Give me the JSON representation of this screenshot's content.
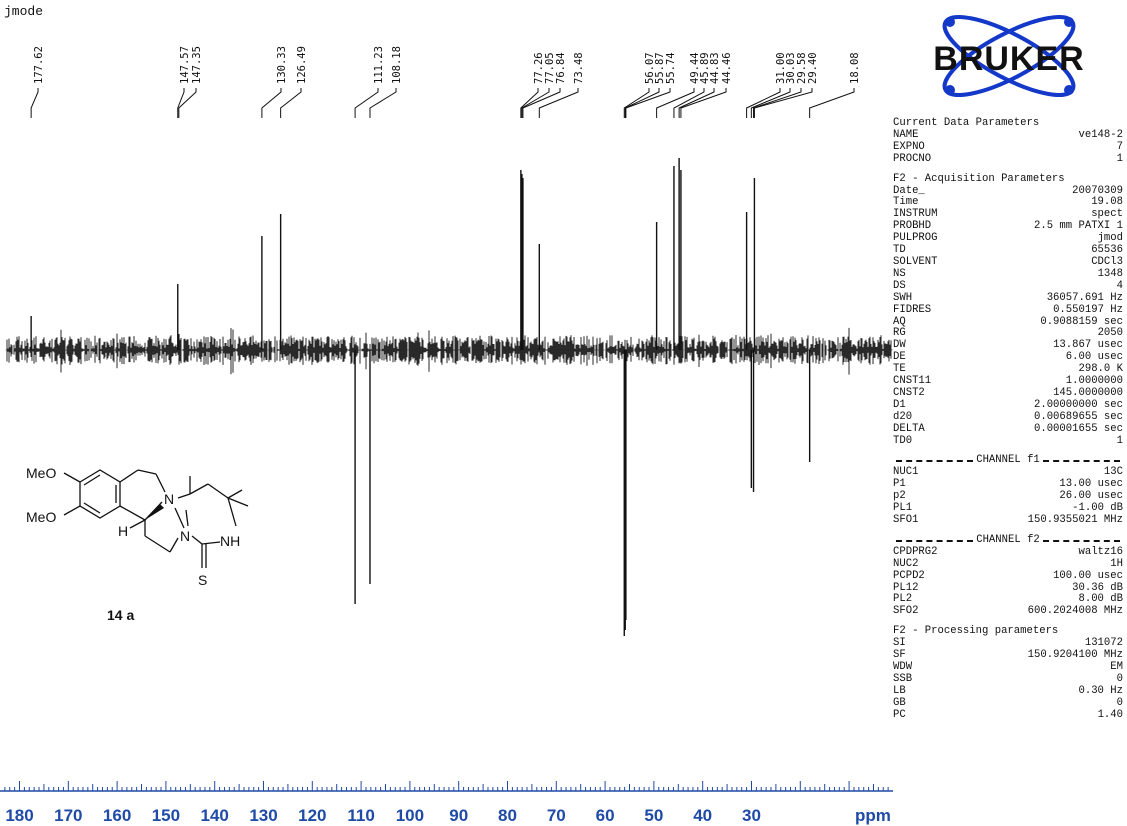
{
  "chart_data": {
    "type": "line",
    "title": "jmode",
    "xlabel": "ppm",
    "xlim": [
      184,
      1
    ],
    "x_ticks": [
      180,
      170,
      160,
      150,
      140,
      130,
      120,
      110,
      100,
      90,
      80,
      70,
      60,
      50,
      40,
      30
    ],
    "peak_labels": [
      "177.62",
      "147.57",
      "147.35",
      "130.33",
      "126.49",
      "111.23",
      "108.18",
      "77.26",
      "77.05",
      "76.84",
      "73.48",
      "56.07",
      "55.87",
      "55.74",
      "49.44",
      "45.89",
      "44.83",
      "44.46",
      "31.00",
      "30.03",
      "29.58",
      "29.40",
      "18.08"
    ],
    "peaks": [
      {
        "x": 177.62,
        "y": 0.17
      },
      {
        "x": 147.57,
        "y": 0.33
      },
      {
        "x": 147.35,
        "y": 0.08
      },
      {
        "x": 130.33,
        "y": 0.57
      },
      {
        "x": 126.49,
        "y": 0.68
      },
      {
        "x": 111.23,
        "y": -1.27
      },
      {
        "x": 108.18,
        "y": -1.17
      },
      {
        "x": 77.26,
        "y": 0.9
      },
      {
        "x": 77.05,
        "y": 0.88
      },
      {
        "x": 76.84,
        "y": 0.86
      },
      {
        "x": 73.48,
        "y": 0.53
      },
      {
        "x": 56.07,
        "y": -1.43
      },
      {
        "x": 55.87,
        "y": -1.4
      },
      {
        "x": 55.74,
        "y": -1.35
      },
      {
        "x": 49.44,
        "y": 0.64
      },
      {
        "x": 45.89,
        "y": 0.92
      },
      {
        "x": 44.83,
        "y": 0.96
      },
      {
        "x": 44.46,
        "y": 0.9
      },
      {
        "x": 31.0,
        "y": 0.69
      },
      {
        "x": 30.03,
        "y": -0.69
      },
      {
        "x": 29.58,
        "y": -0.71
      },
      {
        "x": 29.4,
        "y": 0.86
      },
      {
        "x": 18.08,
        "y": -0.56
      }
    ]
  },
  "compound_label": "14 a",
  "molecule": {
    "labels": {
      "ome1": "MeO",
      "ome2": "MeO",
      "n1": "N",
      "n2": "N",
      "nh": "NH",
      "h": "H",
      "s": "S"
    }
  },
  "logo_text": "BRUKER",
  "params": {
    "current_title": "Current Data Parameters",
    "current": [
      [
        "NAME",
        "ve148-2"
      ],
      [
        "EXPNO",
        "7"
      ],
      [
        "PROCNO",
        "1"
      ]
    ],
    "acq_title": "F2 - Acquisition Parameters",
    "acq": [
      [
        "Date_",
        "20070309"
      ],
      [
        "Time",
        "19.08"
      ],
      [
        "INSTRUM",
        "spect"
      ],
      [
        "PROBHD",
        "2.5 mm PATXI 1"
      ],
      [
        "PULPROG",
        "jmod"
      ],
      [
        "TD",
        "65536"
      ],
      [
        "SOLVENT",
        "CDCl3"
      ],
      [
        "NS",
        "1348"
      ],
      [
        "DS",
        "4"
      ],
      [
        "SWH",
        "36057.691 Hz"
      ],
      [
        "FIDRES",
        "0.550197 Hz"
      ],
      [
        "AQ",
        "0.9088159 sec"
      ],
      [
        "RG",
        "2050"
      ],
      [
        "DW",
        "13.867 usec"
      ],
      [
        "DE",
        "6.00 usec"
      ],
      [
        "TE",
        "298.0 K"
      ],
      [
        "CNST11",
        "1.0000000"
      ],
      [
        "CNST2",
        "145.0000000"
      ],
      [
        "D1",
        "2.00000000 sec"
      ],
      [
        "d20",
        "0.00689655 sec"
      ],
      [
        "DELTA",
        "0.00001655 sec"
      ],
      [
        "TD0",
        "1"
      ]
    ],
    "ch1_title": "CHANNEL f1",
    "ch1": [
      [
        "NUC1",
        "13C"
      ],
      [
        "P1",
        "13.00 usec"
      ],
      [
        "p2",
        "26.00 usec"
      ],
      [
        "PL1",
        "-1.00 dB"
      ],
      [
        "SFO1",
        "150.9355021 MHz"
      ]
    ],
    "ch2_title": "CHANNEL f2",
    "ch2": [
      [
        "CPDPRG2",
        "waltz16"
      ],
      [
        "NUC2",
        "1H"
      ],
      [
        "PCPD2",
        "100.00 usec"
      ],
      [
        "PL12",
        "30.36 dB"
      ],
      [
        "PL2",
        "8.00 dB"
      ],
      [
        "SFO2",
        "600.2024008 MHz"
      ]
    ],
    "proc_title": "F2 - Processing parameters",
    "proc": [
      [
        "SI",
        "131072"
      ],
      [
        "SF",
        "150.9204100 MHz"
      ],
      [
        "WDW",
        "EM"
      ],
      [
        "SSB",
        "0"
      ],
      [
        "LB",
        "0.30 Hz"
      ],
      [
        "GB",
        "0"
      ],
      [
        "PC",
        "1.40"
      ]
    ]
  },
  "colors": {
    "axis": "#1f4aa6",
    "logo": "#1438c8",
    "trace": "#111111"
  }
}
